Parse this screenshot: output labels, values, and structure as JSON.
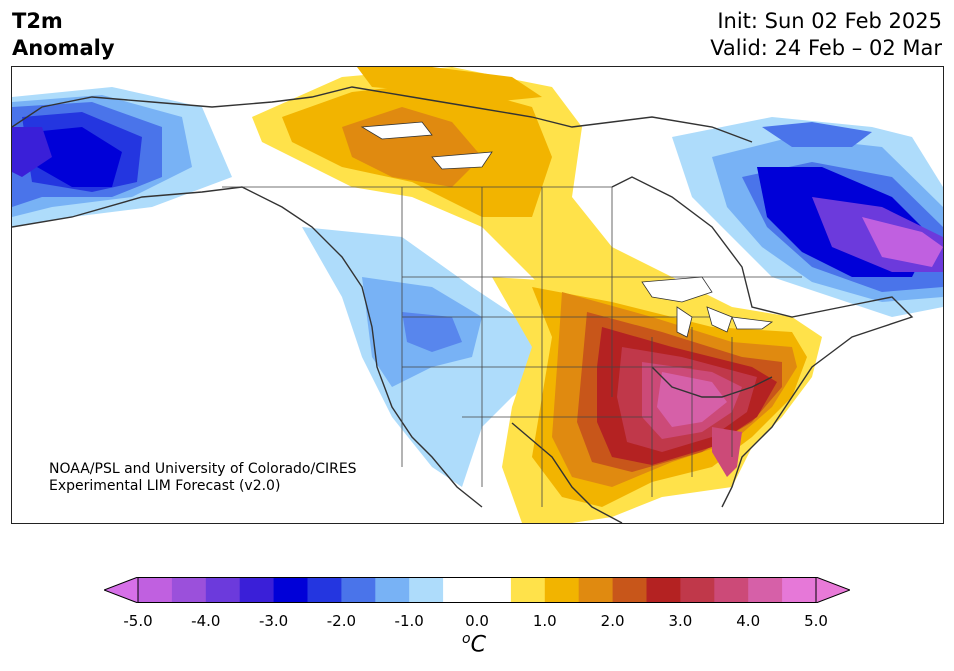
{
  "title": {
    "left_line1": "T2m",
    "left_line2": "Anomaly",
    "init": "Init: Sun 02 Feb 2025",
    "valid": "Valid: 24 Feb – 02 Mar"
  },
  "credit": {
    "line1": "NOAA/PSL and University of Colorado/CIRES",
    "line2": "Experimental LIM Forecast (v2.0)"
  },
  "colorbar": {
    "min": -5.0,
    "max": 5.0,
    "step": 0.5,
    "ticks": [
      "-5.0",
      "-4.0",
      "-3.0",
      "-2.0",
      "-1.0",
      "0.0",
      "1.0",
      "2.0",
      "3.0",
      "4.0",
      "5.0"
    ],
    "colors": [
      "#c060e0",
      "#9b50db",
      "#6c3adc",
      "#3a1fd8",
      "#0000d8",
      "#2436e0",
      "#4a74ea",
      "#78b2f5",
      "#aedcfb",
      "#ffffff",
      "#ffffff",
      "#ffe24a",
      "#f2b400",
      "#e08a10",
      "#c8561a",
      "#b42222",
      "#c0384a",
      "#cc4a78",
      "#d660a8",
      "#e678d8"
    ],
    "under_color": "#d670e8",
    "over_color": "#e87ad8",
    "unit_label": "C",
    "unit_super": "o"
  },
  "legend_colors": {
    "cold": "#0000d8",
    "warm": "#b42222",
    "neutral": "#ffffff"
  }
}
